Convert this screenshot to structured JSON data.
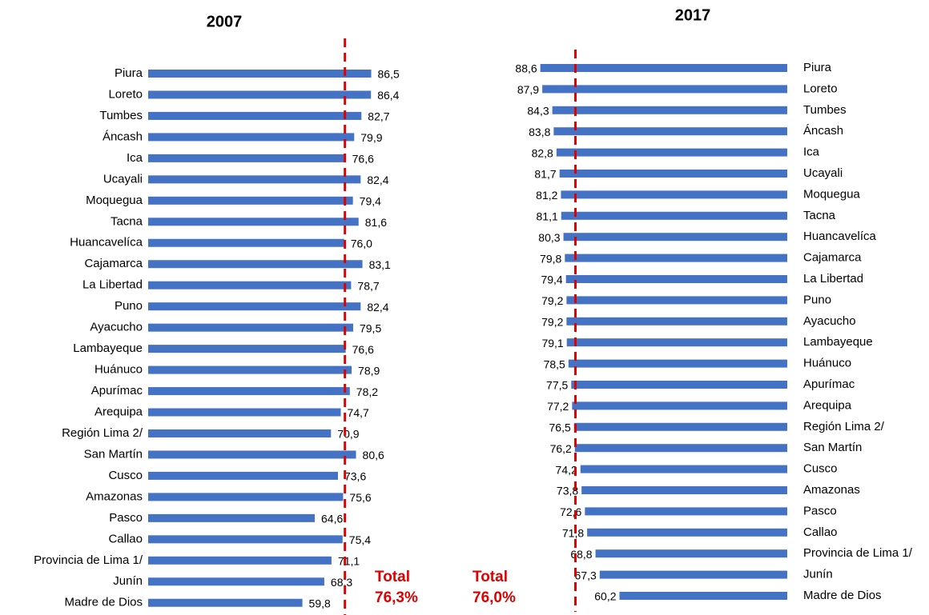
{
  "chart_data": [
    {
      "type": "bar",
      "orientation": "horizontal",
      "title": "2007",
      "color": "#4472c4",
      "xlim": [
        0,
        100
      ],
      "categories": [
        "Piura",
        "Loreto",
        "Tumbes",
        "Áncash",
        "Ica",
        "Ucayali",
        "Moquegua",
        "Tacna",
        "Huancavelíca",
        "Cajamarca",
        "La Libertad",
        "Puno",
        "Ayacucho",
        "Lambayeque",
        "Huánuco",
        "Apurímac",
        "Arequipa",
        "Región Lima 2/",
        "San Martín",
        "Cusco",
        "Amazonas",
        "Pasco",
        "Callao",
        "Provincia de Lima 1/",
        "Junín",
        "Madre de Dios"
      ],
      "values": [
        86.5,
        86.4,
        82.7,
        79.9,
        76.6,
        82.4,
        79.4,
        81.6,
        76.0,
        83.1,
        78.7,
        82.4,
        79.5,
        76.6,
        78.9,
        78.2,
        74.7,
        70.9,
        80.6,
        73.6,
        75.6,
        64.6,
        75.4,
        71.1,
        68.3,
        59.8
      ],
      "value_labels": [
        "86,5",
        "86,4",
        "82,7",
        "79,9",
        "76,6",
        "82,4",
        "79,4",
        "81,6",
        "76,0",
        "83,1",
        "78,7",
        "82,4",
        "79,5",
        "76,6",
        "78,9",
        "78,2",
        "74,7",
        "70,9",
        "80,6",
        "73,6",
        "75,6",
        "64,6",
        "75,4",
        "71,1",
        "68,3",
        "59,8"
      ],
      "reference": {
        "value": 76.3,
        "label": "Total",
        "value_label": "76,3%",
        "color": "#e00000"
      }
    },
    {
      "type": "bar",
      "orientation": "horizontal",
      "title": "2017",
      "color": "#4472c4",
      "xlim": [
        0,
        100
      ],
      "x_reversed": true,
      "categories": [
        "Piura",
        "Loreto",
        "Tumbes",
        "Áncash",
        "Ica",
        "Ucayali",
        "Moquegua",
        "Tacna",
        "Huancavelíca",
        "Cajamarca",
        "La Libertad",
        "Puno",
        "Ayacucho",
        "Lambayeque",
        "Huánuco",
        "Apurímac",
        "Arequipa",
        "Región Lima 2/",
        "San Martín",
        "Cusco",
        "Amazonas",
        "Pasco",
        "Callao",
        "Provincia de Lima 1/",
        "Junín",
        "Madre de Dios"
      ],
      "values": [
        88.6,
        87.9,
        84.3,
        83.8,
        82.8,
        81.7,
        81.2,
        81.1,
        80.3,
        79.8,
        79.4,
        79.2,
        79.2,
        79.1,
        78.5,
        77.5,
        77.2,
        76.5,
        76.2,
        74.2,
        73.8,
        72.6,
        71.8,
        68.8,
        67.3,
        60.2
      ],
      "value_labels": [
        "88,6",
        "87,9",
        "84,3",
        "83,8",
        "82,8",
        "81,7",
        "81,2",
        "81,1",
        "80,3",
        "79,8",
        "79,4",
        "79,2",
        "79,2",
        "79,1",
        "78,5",
        "77,5",
        "77,2",
        "76,5",
        "76,2",
        "74,2",
        "73,8",
        "72,6",
        "71,8",
        "68,8",
        "67,3",
        "60,2"
      ],
      "reference": {
        "value": 76.0,
        "label": "Total",
        "value_label": "76,0%",
        "color": "#e00000"
      }
    }
  ]
}
